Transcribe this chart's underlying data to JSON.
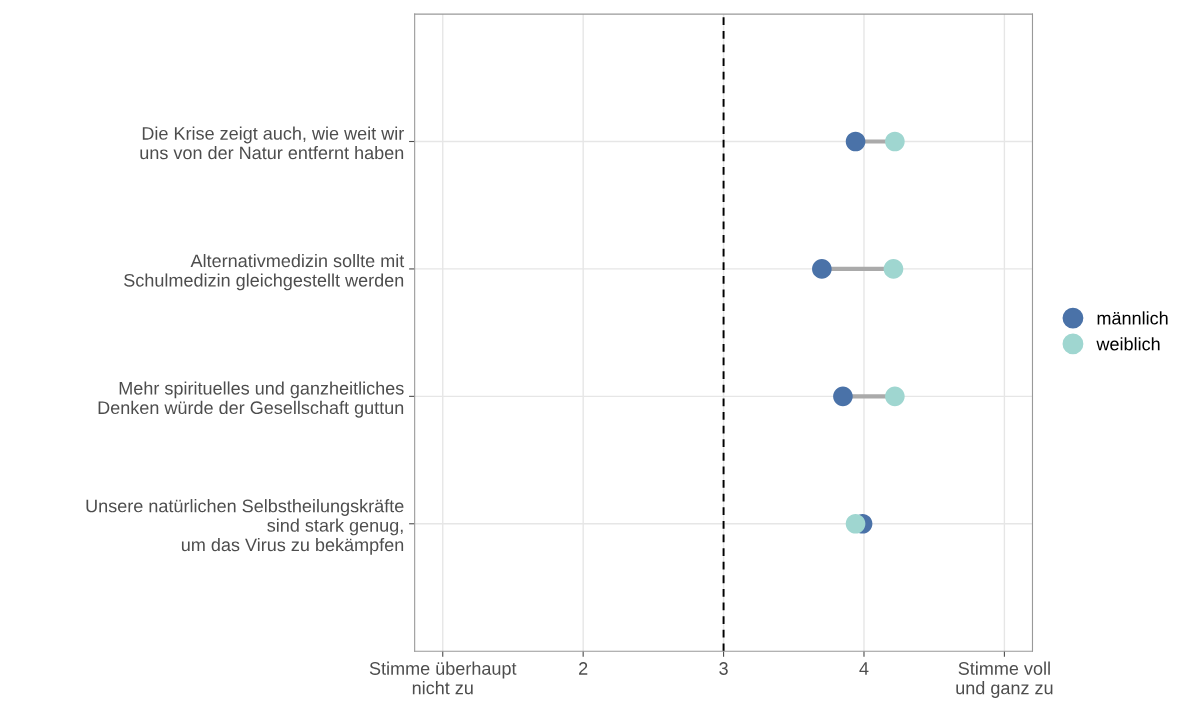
{
  "chart_data": {
    "type": "scatter",
    "orientation": "horizontal",
    "categories": [
      "Die Krise zeigt auch, wie weit wir\nuns von der Natur entfernt haben",
      "Alternativmedizin sollte mit\nSchulmedizin gleichgestellt werden",
      "Mehr spirituelles und ganzheitliches\nDenken würde der Gesellschaft guttun",
      "Unsere natürlichen Selbstheilungskräfte\nsind stark genug,\num das Virus zu bekämpfen"
    ],
    "series": [
      {
        "name": "männlich",
        "color": "#4a72a8",
        "values": [
          3.94,
          3.7,
          3.85,
          3.99
        ]
      },
      {
        "name": "weiblich",
        "color": "#9fd6d0",
        "values": [
          4.22,
          4.21,
          4.22,
          3.94
        ]
      }
    ],
    "xlim": [
      0.8,
      5.2
    ],
    "xticks": [
      {
        "value": 1,
        "label": "Stimme überhaupt\nnicht zu"
      },
      2,
      3,
      4,
      {
        "value": 5,
        "label": "Stimme voll\nund ganz zu"
      }
    ],
    "ref_lines": [
      {
        "axis": "x",
        "value": 3,
        "color": "#000000",
        "line_style": "dashed"
      }
    ],
    "grid": true,
    "legend": "right",
    "marker": "circle"
  }
}
